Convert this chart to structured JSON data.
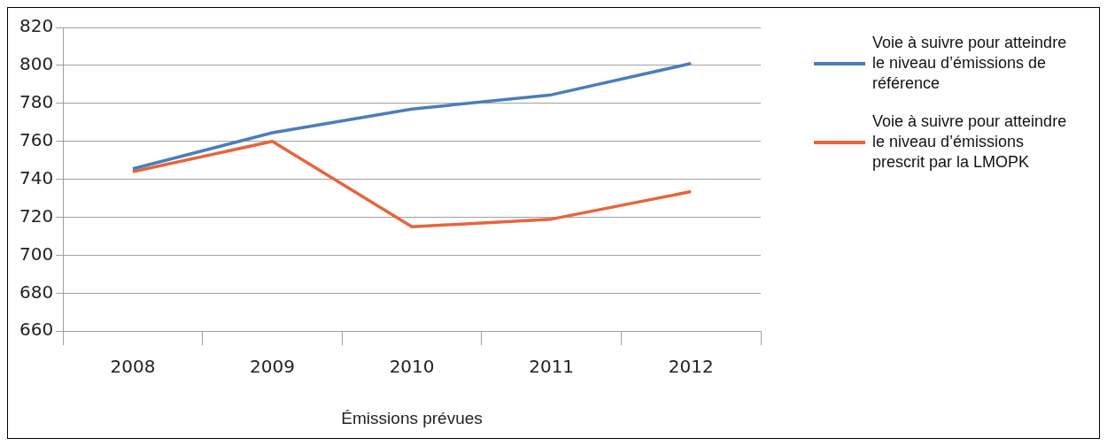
{
  "chart_data": {
    "type": "line",
    "xlabel": "Émissions prévues",
    "categories": [
      "2008",
      "2009",
      "2010",
      "2011",
      "2012"
    ],
    "series": [
      {
        "name": "Voie à suivre pour atteindre le niveau d’émissions de référence",
        "color": "#4a7ebb",
        "values": [
          745.5,
          764.5,
          777,
          784.5,
          801
        ]
      },
      {
        "name": "Voie à suivre pour atteindre le niveau d’émissions prescrit par la LMOPK",
        "color": "#e8643c",
        "values": [
          744,
          760,
          715,
          719,
          733.5
        ]
      }
    ],
    "ylim": [
      660,
      820
    ],
    "yticks": [
      660,
      680,
      700,
      720,
      740,
      760,
      780,
      800,
      820
    ],
    "grid": "y",
    "legend": "right",
    "marker": "none",
    "line_style": "solid"
  }
}
